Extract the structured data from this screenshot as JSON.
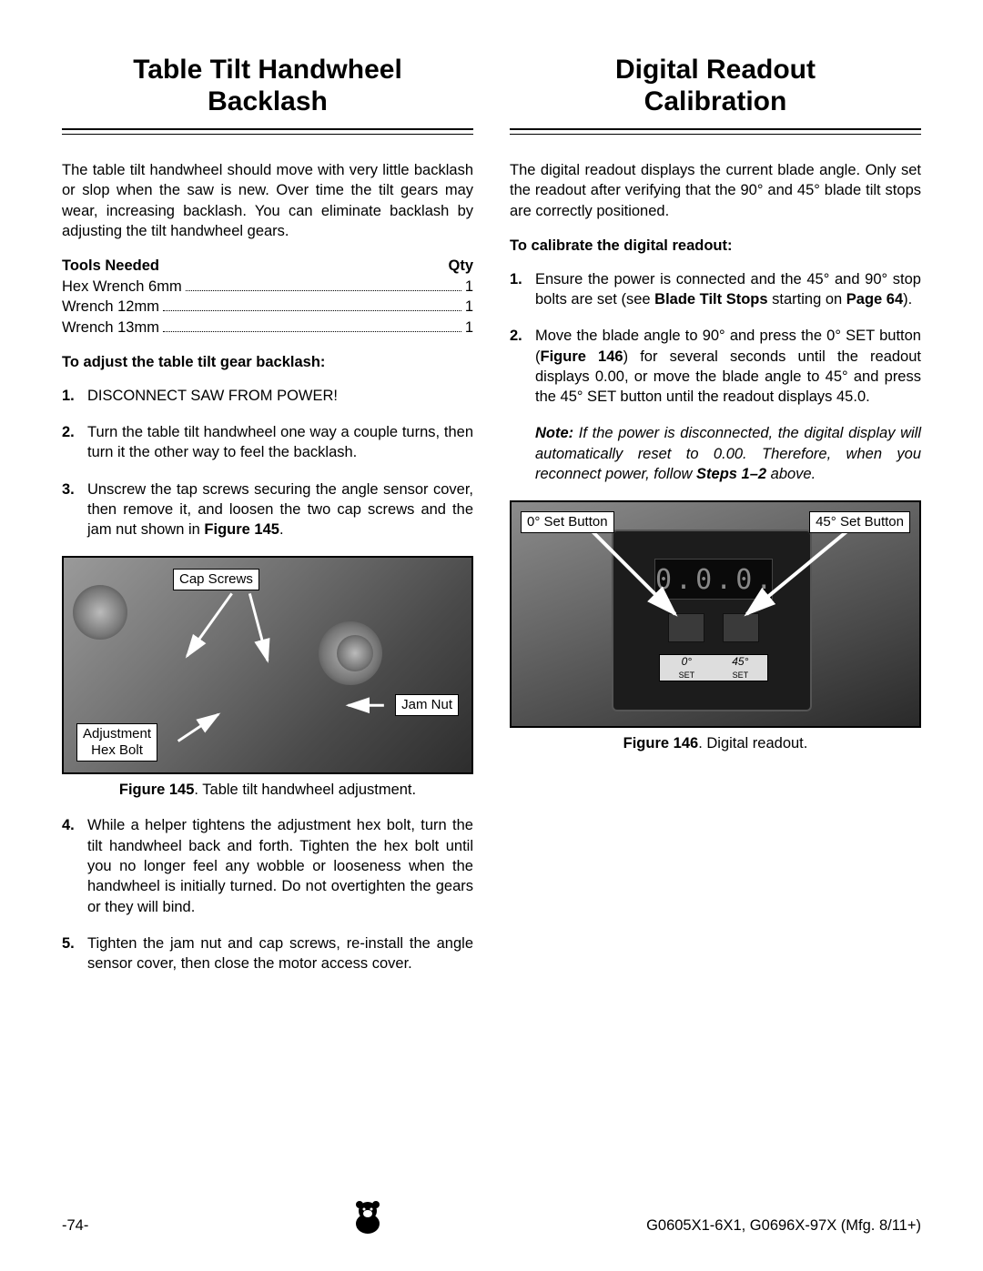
{
  "left": {
    "title_line1": "Table Tilt Handwheel",
    "title_line2": "Backlash",
    "title_fontsize": 30,
    "intro": "The table tilt handwheel should move with very little backlash or slop when the saw is new. Over time the tilt gears may wear, increasing backlash. You can eliminate backlash by adjusting the tilt handwheel gears.",
    "tools_label": "Tools Needed",
    "qty_label": "Qty",
    "tools": [
      {
        "name": "Hex Wrench 6mm",
        "qty": "1"
      },
      {
        "name": "Wrench 12mm",
        "qty": "1"
      },
      {
        "name": "Wrench 13mm",
        "qty": "1"
      }
    ],
    "procedure_head": "To adjust the table tilt gear backlash:",
    "steps_a": [
      {
        "n": "1.",
        "t": "DISCONNECT SAW FROM POWER!"
      },
      {
        "n": "2.",
        "t": "Turn the table tilt handwheel one way a couple turns, then turn it the other way to feel the backlash."
      },
      {
        "n": "3.",
        "t": "Unscrew the tap screws securing the angle sensor cover, then remove it, and loosen the two cap screws and the jam nut shown in "
      }
    ],
    "step3_ref": "Figure 145",
    "step3_end": ".",
    "fig145": {
      "callout_capscrews": "Cap Screws",
      "callout_jamnut": "Jam Nut",
      "callout_adj_l1": "Adjustment",
      "callout_adj_l2": "Hex Bolt",
      "caption_bold": "Figure 145",
      "caption_rest": ". Table tilt handwheel adjustment."
    },
    "steps_b": [
      {
        "n": "4.",
        "t": "While a helper tightens the adjustment hex bolt, turn the tilt handwheel back and forth. Tighten the hex bolt until you no longer feel any wobble or looseness when the handwheel is initially turned. Do not overtighten the gears or they will bind."
      },
      {
        "n": "5.",
        "t": "Tighten the jam nut and cap screws, re-install the angle sensor cover, then close the motor access cover."
      }
    ]
  },
  "right": {
    "title_line1": "Digital Readout",
    "title_line2": "Calibration",
    "intro": "The digital readout displays the current blade angle. Only set the readout after verifying that the 90° and 45° blade tilt stops are correctly positioned.",
    "procedure_head": "To calibrate the digital readout:",
    "step1_pre": "Ensure the power is connected and the 45° and 90° stop bolts are set (see ",
    "step1_bold1": "Blade Tilt Stops",
    "step1_mid": " starting on ",
    "step1_bold2": "Page 64",
    "step1_end": ").",
    "step2_pre": "Move the blade angle to 90° and press the 0° SET button (",
    "step2_bold": "Figure 146",
    "step2_post": ") for several seconds until the readout displays 0.00, or move the blade angle to 45° and press the 45° SET button until the readout displays 45.0.",
    "note_label": "Note:",
    "note_body": " If the power is disconnected, the digital display will automatically reset to 0.00. Therefore, when you reconnect power, follow ",
    "note_bold": "Steps 1–2",
    "note_end": " above.",
    "fig146": {
      "callout_0set": "0° Set Button",
      "callout_45set": "45° Set Button",
      "display_text": "0.0.0.",
      "btn_0_l1": "0°",
      "btn_0_l2": "SET",
      "btn_45_l1": "45°",
      "btn_45_l2": "SET",
      "caption_bold": "Figure 146",
      "caption_rest": ". Digital readout."
    }
  },
  "footer": {
    "page": "-74-",
    "doc": "G0605X1-6X1, G0696X-97X (Mfg. 8/11+)"
  },
  "body_fontsize": 16.5
}
